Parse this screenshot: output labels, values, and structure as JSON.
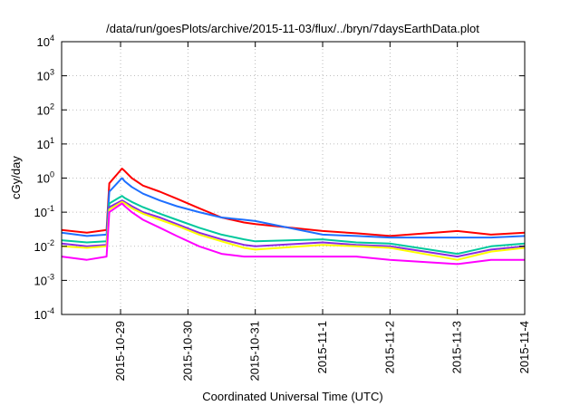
{
  "chart_data": {
    "type": "line",
    "title": "/data/run/goesPlots/archive/2015-11-03/flux/../bryn/7daysEarthData.plot",
    "xlabel": "Coordinated Universal Time (UTC)",
    "ylabel": "cGy/day",
    "yscale": "log",
    "ylim": [
      0.0001,
      10000
    ],
    "xlim": [
      "2015-10-28T03:00",
      "2015-11-04T00:00"
    ],
    "grid": true,
    "x_ticks": [
      "2015-10-29",
      "2015-10-30",
      "2015-10-31",
      "2015-11-1",
      "2015-11-2",
      "2015-11-3",
      "2015-11-4"
    ],
    "y_ticks": [
      {
        "base": "10",
        "exp": "-4"
      },
      {
        "base": "10",
        "exp": "-3"
      },
      {
        "base": "10",
        "exp": "-2"
      },
      {
        "base": "10",
        "exp": "-1"
      },
      {
        "base": "10",
        "exp": "0"
      },
      {
        "base": "10",
        "exp": "1"
      },
      {
        "base": "10",
        "exp": "2"
      },
      {
        "base": "10",
        "exp": "3"
      },
      {
        "base": "10",
        "exp": "4"
      }
    ],
    "x": [
      "2015-10-28T03:00",
      "2015-10-28T12:00",
      "2015-10-28T19:00",
      "2015-10-28T20:00",
      "2015-10-29T00:30",
      "2015-10-29T01:30",
      "2015-10-29T04:00",
      "2015-10-29T08:00",
      "2015-10-29T14:00",
      "2015-10-29T20:00",
      "2015-10-30T04:00",
      "2015-10-30T12:00",
      "2015-10-30T20:00",
      "2015-10-31T00:00",
      "2015-11-01T00:00",
      "2015-11-01T12:00",
      "2015-11-02T00:00",
      "2015-11-03T00:00",
      "2015-11-03T12:00",
      "2015-11-04T00:00"
    ],
    "series": [
      {
        "color": "#ff0000",
        "values": [
          0.03,
          0.025,
          0.03,
          0.7,
          1.9,
          1.6,
          1.0,
          0.6,
          0.4,
          0.25,
          0.13,
          0.07,
          0.05,
          0.045,
          0.028,
          0.024,
          0.02,
          0.028,
          0.022,
          0.025
        ]
      },
      {
        "color": "#1e6fff",
        "values": [
          0.025,
          0.02,
          0.022,
          0.4,
          1.0,
          0.8,
          0.55,
          0.35,
          0.22,
          0.15,
          0.1,
          0.07,
          0.06,
          0.055,
          0.022,
          0.02,
          0.018,
          0.018,
          0.018,
          0.02
        ]
      },
      {
        "color": "#00c89c",
        "values": [
          0.015,
          0.013,
          0.014,
          0.18,
          0.3,
          0.26,
          0.2,
          0.14,
          0.09,
          0.06,
          0.035,
          0.022,
          0.016,
          0.014,
          0.016,
          0.013,
          0.012,
          0.006,
          0.01,
          0.012
        ]
      },
      {
        "color": "#8a2be2",
        "values": [
          0.012,
          0.01,
          0.011,
          0.14,
          0.22,
          0.2,
          0.15,
          0.1,
          0.07,
          0.045,
          0.025,
          0.016,
          0.011,
          0.01,
          0.013,
          0.011,
          0.01,
          0.005,
          0.008,
          0.01
        ]
      },
      {
        "color": "#ffff00",
        "values": [
          0.01,
          0.009,
          0.01,
          0.12,
          0.2,
          0.18,
          0.13,
          0.09,
          0.06,
          0.04,
          0.022,
          0.014,
          0.009,
          0.008,
          0.011,
          0.01,
          0.009,
          0.004,
          0.007,
          0.009
        ]
      },
      {
        "color": "#ff00ff",
        "values": [
          0.005,
          0.004,
          0.005,
          0.1,
          0.18,
          0.15,
          0.1,
          0.06,
          0.035,
          0.02,
          0.01,
          0.006,
          0.005,
          0.005,
          0.005,
          0.005,
          0.004,
          0.003,
          0.004,
          0.004
        ]
      }
    ]
  }
}
